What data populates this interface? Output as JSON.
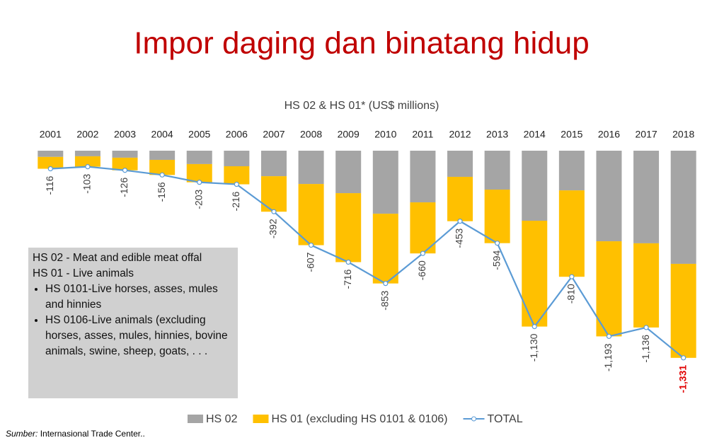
{
  "title": "Impor daging dan binatang hidup",
  "chart_data": {
    "type": "stacked_bar_line",
    "title": "HS 02 & HS 01* (US$ millions)",
    "categories": [
      "2001",
      "2002",
      "2003",
      "2004",
      "2005",
      "2006",
      "2007",
      "2008",
      "2009",
      "2010",
      "2011",
      "2012",
      "2013",
      "2014",
      "2015",
      "2016",
      "2017",
      "2018"
    ],
    "ylim": [
      -1400,
      0
    ],
    "series": [
      {
        "name": "HS 02",
        "type": "bar",
        "color": "#a5a5a5",
        "values": [
          -40,
          -36,
          -45,
          -59,
          -86,
          -100,
          -164,
          -214,
          -273,
          -405,
          -332,
          -168,
          -250,
          -450,
          -255,
          -582,
          -595,
          -727
        ]
      },
      {
        "name": "HS 01 (excluding HS 0101 & 0106)",
        "type": "bar",
        "color": "#ffc000",
        "values": [
          -76,
          -67,
          -81,
          -97,
          -117,
          -116,
          -228,
          -393,
          -443,
          -448,
          -328,
          -285,
          -344,
          -680,
          -555,
          -611,
          -541,
          -604
        ]
      },
      {
        "name": "TOTAL",
        "type": "line",
        "color": "#5b9bd5",
        "values": [
          -116,
          -103,
          -126,
          -156,
          -203,
          -216,
          -392,
          -607,
          -716,
          -853,
          -660,
          -453,
          -594,
          -1130,
          -810,
          -1193,
          -1136,
          -1331
        ],
        "value_labels": [
          "-116",
          "-103",
          "-126",
          "-156",
          "-203",
          "-216",
          "-392",
          "-607",
          "-716",
          "-853",
          "-660",
          "-453",
          "-594",
          "-1,130",
          "-810",
          "-1,193",
          "-1,136",
          "-1,331"
        ],
        "value_label_colors": [
          "#404040",
          "#404040",
          "#404040",
          "#404040",
          "#404040",
          "#404040",
          "#404040",
          "#404040",
          "#404040",
          "#404040",
          "#404040",
          "#404040",
          "#404040",
          "#404040",
          "#404040",
          "#404040",
          "#404040",
          "#e00000"
        ]
      }
    ],
    "annotation": {
      "lines": [
        "HS 02 - Meat and edible meat offal",
        "HS 01 - Live animals"
      ],
      "bullets": [
        "HS 0101-Live horses, asses, mules and hinnies",
        "HS 0106-Live animals (excluding horses, asses, mules, hinnies, bovine animals, swine, sheep, goats, . . ."
      ]
    }
  },
  "source": {
    "label": "Sumber:",
    "text": "Internasional Trade Center.."
  }
}
